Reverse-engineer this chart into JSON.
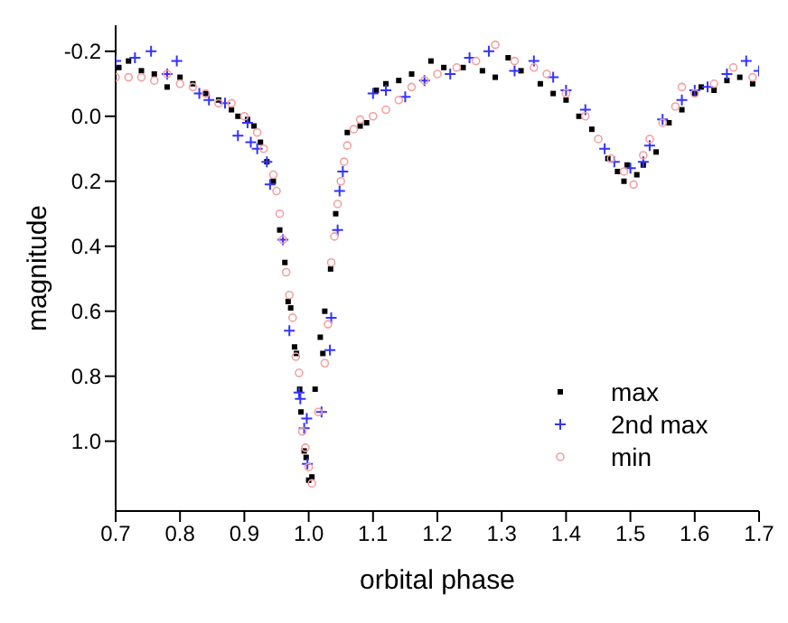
{
  "chart_data": {
    "type": "scatter",
    "xlabel": "orbital phase",
    "ylabel": "magnitude",
    "xlim": [
      0.7,
      1.7
    ],
    "ylim": [
      1.215,
      -0.28
    ],
    "xticks": [
      0.7,
      0.8,
      0.9,
      {
        "value": 1,
        "label": "1.0"
      },
      1.1,
      1.2,
      1.3,
      1.4,
      1.5,
      1.6,
      1.7
    ],
    "yticks": [
      -0.2,
      {
        "value": 0,
        "label": "0.0"
      },
      0.2,
      0.4,
      0.6,
      0.8,
      {
        "value": 1,
        "label": "1.0"
      }
    ],
    "legend": "bottom right",
    "series": [
      {
        "name": "max",
        "color": "#000000",
        "marker": "square",
        "x": [
          0.705,
          0.72,
          0.74,
          0.76,
          0.78,
          0.8,
          0.82,
          0.84,
          0.86,
          0.88,
          0.89,
          0.905,
          0.915,
          0.925,
          0.935,
          0.945,
          0.955,
          0.963,
          0.968,
          0.972,
          0.978,
          0.981,
          0.986,
          0.988,
          0.993,
          0.996,
          1.0,
          1.005,
          1.01,
          1.018,
          1.022,
          1.025,
          1.034,
          1.042,
          1.06,
          1.08,
          1.09,
          1.105,
          1.12,
          1.14,
          1.16,
          1.19,
          1.21,
          1.24,
          1.27,
          1.29,
          1.31,
          1.33,
          1.36,
          1.38,
          1.4,
          1.42,
          1.44,
          1.465,
          1.48,
          1.49,
          1.495,
          1.51,
          1.52,
          1.54,
          1.56,
          1.58,
          1.6,
          1.61,
          1.63,
          1.65,
          1.67,
          1.69
        ],
        "values": [
          -0.15,
          -0.17,
          -0.14,
          -0.13,
          -0.09,
          -0.12,
          -0.1,
          -0.07,
          -0.05,
          -0.02,
          0.0,
          0.01,
          0.03,
          0.08,
          0.14,
          0.2,
          0.35,
          0.45,
          0.57,
          0.59,
          0.71,
          0.73,
          0.84,
          0.91,
          1.03,
          1.05,
          1.12,
          1.11,
          0.84,
          0.68,
          0.73,
          0.6,
          0.47,
          0.3,
          0.05,
          0.03,
          0.02,
          -0.08,
          -0.1,
          -0.11,
          -0.13,
          -0.17,
          -0.15,
          -0.15,
          -0.14,
          -0.12,
          -0.18,
          -0.14,
          -0.1,
          -0.07,
          -0.05,
          0.0,
          0.04,
          0.13,
          0.17,
          0.2,
          0.15,
          0.18,
          0.15,
          0.11,
          0.02,
          -0.02,
          -0.07,
          -0.09,
          -0.08,
          -0.11,
          -0.12,
          -0.1
        ]
      },
      {
        "name": "2nd max",
        "color": "#3333ff",
        "marker": "cross",
        "x": [
          0.7,
          0.73,
          0.755,
          0.78,
          0.795,
          0.83,
          0.845,
          0.87,
          0.89,
          0.905,
          0.91,
          0.92,
          0.935,
          0.94,
          0.96,
          0.97,
          0.985,
          0.987,
          0.993,
          0.997,
          0.998,
          1.02,
          1.033,
          1.035,
          1.045,
          1.048,
          1.053,
          1.1,
          1.12,
          1.15,
          1.18,
          1.22,
          1.25,
          1.28,
          1.32,
          1.35,
          1.38,
          1.4,
          1.43,
          1.46,
          1.475,
          1.5,
          1.52,
          1.53,
          1.55,
          1.58,
          1.6,
          1.62,
          1.65,
          1.68,
          1.7
        ],
        "values": [
          -0.17,
          -0.18,
          -0.2,
          -0.13,
          -0.17,
          -0.07,
          -0.05,
          -0.04,
          0.06,
          0.02,
          0.08,
          0.1,
          0.14,
          0.21,
          0.38,
          0.66,
          0.85,
          0.87,
          0.96,
          0.93,
          1.07,
          0.91,
          0.72,
          0.62,
          0.35,
          0.23,
          0.17,
          -0.07,
          -0.08,
          -0.06,
          -0.11,
          -0.13,
          -0.18,
          -0.2,
          -0.14,
          -0.17,
          -0.12,
          -0.08,
          -0.02,
          0.1,
          0.14,
          0.16,
          0.14,
          0.09,
          0.01,
          -0.05,
          -0.08,
          -0.09,
          -0.13,
          -0.17,
          -0.14
        ]
      },
      {
        "name": "min",
        "color": "#f4a0a0",
        "marker": "circle",
        "x": [
          0.7,
          0.72,
          0.74,
          0.76,
          0.78,
          0.8,
          0.82,
          0.84,
          0.86,
          0.88,
          0.9,
          0.92,
          0.93,
          0.945,
          0.95,
          0.955,
          0.96,
          0.965,
          0.97,
          0.975,
          0.98,
          0.985,
          0.99,
          0.995,
          1.0,
          1.005,
          1.015,
          1.025,
          1.03,
          1.035,
          1.04,
          1.045,
          1.05,
          1.055,
          1.06,
          1.07,
          1.08,
          1.1,
          1.12,
          1.14,
          1.16,
          1.18,
          1.2,
          1.23,
          1.26,
          1.29,
          1.32,
          1.35,
          1.37,
          1.4,
          1.43,
          1.45,
          1.47,
          1.49,
          1.505,
          1.52,
          1.53,
          1.55,
          1.57,
          1.58,
          1.6,
          1.63,
          1.66,
          1.69
        ],
        "values": [
          -0.12,
          -0.12,
          -0.12,
          -0.11,
          -0.13,
          -0.1,
          -0.09,
          -0.07,
          -0.04,
          -0.04,
          0.0,
          0.05,
          0.1,
          0.18,
          0.23,
          0.3,
          0.38,
          0.48,
          0.55,
          0.62,
          0.74,
          0.79,
          0.97,
          1.02,
          1.08,
          1.13,
          0.91,
          0.76,
          0.64,
          0.45,
          0.37,
          0.27,
          0.2,
          0.14,
          0.09,
          0.04,
          0.01,
          0.0,
          -0.02,
          -0.05,
          -0.09,
          -0.11,
          -0.13,
          -0.15,
          -0.17,
          -0.22,
          -0.17,
          -0.15,
          -0.13,
          -0.07,
          0.0,
          0.07,
          0.13,
          0.17,
          0.21,
          0.12,
          0.07,
          0.02,
          -0.03,
          -0.09,
          -0.07,
          -0.1,
          -0.15,
          -0.12
        ]
      }
    ]
  }
}
